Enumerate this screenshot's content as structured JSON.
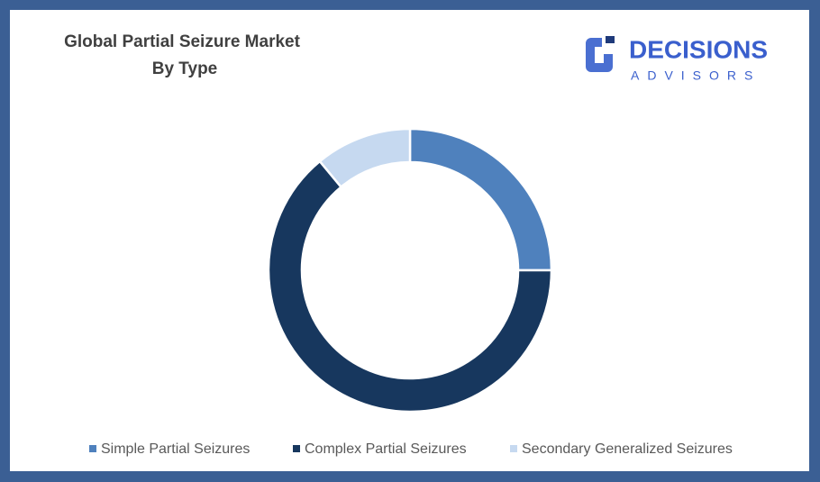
{
  "chart_data": {
    "type": "donut",
    "title": "Global Partial Seizure Market",
    "subtitle": "By Type",
    "categories": [
      "Simple Partial Seizures",
      "Complex Partial Seizures",
      "Secondary Generalized Seizures"
    ],
    "values": [
      25,
      64,
      11
    ],
    "colors": [
      "#4f81bd",
      "#17375e",
      "#c6d9f0"
    ],
    "legend": "bottom"
  },
  "brand": {
    "name": "DECISIONS",
    "tagline": "ADVISORS"
  }
}
